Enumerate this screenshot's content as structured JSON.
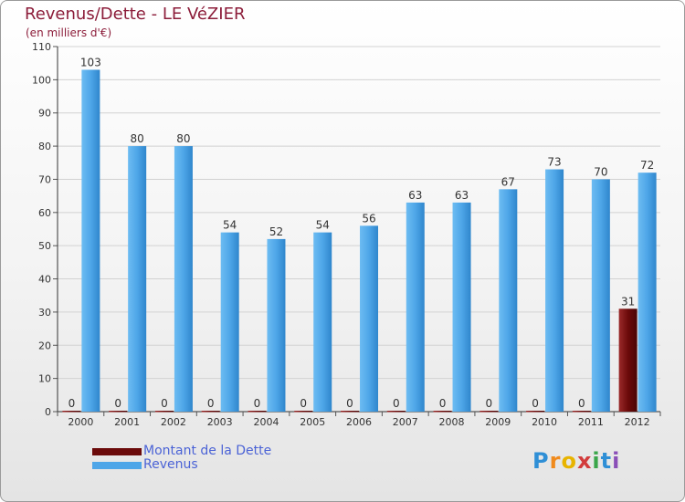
{
  "chart_data": {
    "type": "bar",
    "title": "Revenus/Dette - LE VéZIER",
    "subtitle": "(en milliers d'€)",
    "categories": [
      "2000",
      "2001",
      "2002",
      "2003",
      "2004",
      "2005",
      "2006",
      "2007",
      "2008",
      "2009",
      "2010",
      "2011",
      "2012"
    ],
    "series": [
      {
        "name": "Montant de la Dette",
        "color": "#6b0a0a",
        "values": [
          0,
          0,
          0,
          0,
          0,
          0,
          0,
          0,
          0,
          0,
          0,
          0,
          31
        ]
      },
      {
        "name": "Revenus",
        "color": "#4ea6e8",
        "values": [
          103,
          80,
          80,
          54,
          52,
          54,
          56,
          63,
          63,
          67,
          73,
          70,
          72
        ]
      }
    ],
    "ylim": [
      0,
      110
    ],
    "yticks": [
      0,
      10,
      20,
      30,
      40,
      50,
      60,
      70,
      80,
      90,
      100,
      110
    ],
    "grid": true,
    "legend": "bottom-left"
  },
  "legend_items": [
    {
      "label": "Montant de la Dette",
      "color": "#6b0a0a"
    },
    {
      "label": "Revenus",
      "color": "#4ea6e8"
    }
  ],
  "logo": {
    "letters": [
      "P",
      "r",
      "o",
      "x",
      "i",
      "t",
      "i"
    ],
    "colors": [
      "#2f8fd6",
      "#f08a1c",
      "#e8b400",
      "#d23c3c",
      "#3aa64a",
      "#2f8fd6",
      "#8a4fb8"
    ]
  }
}
